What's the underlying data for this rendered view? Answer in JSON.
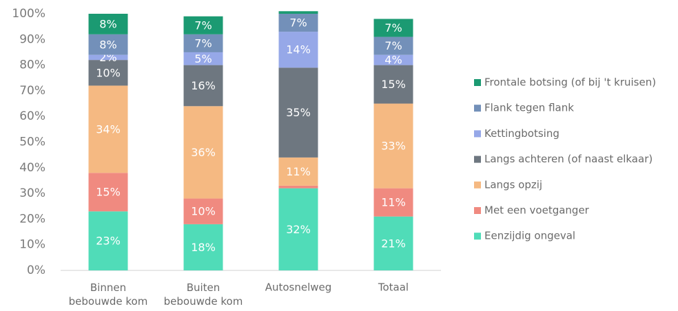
{
  "chart_data": {
    "type": "stacked_bar",
    "categories": [
      "Binnen bebouwde kom",
      "Buiten bebouwde kom",
      "Autosnelweg",
      "Totaal"
    ],
    "ylim": [
      0,
      100
    ],
    "yticks": [
      {
        "value": 0,
        "label": "0%"
      },
      {
        "value": 10,
        "label": "10%"
      },
      {
        "value": 20,
        "label": "20%"
      },
      {
        "value": 30,
        "label": "30%"
      },
      {
        "value": 40,
        "label": "40%"
      },
      {
        "value": 50,
        "label": "50%"
      },
      {
        "value": 60,
        "label": "60%"
      },
      {
        "value": 70,
        "label": "70%"
      },
      {
        "value": 80,
        "label": "80%"
      },
      {
        "value": 90,
        "label": "90%"
      },
      {
        "value": 100,
        "label": "100%"
      }
    ],
    "legend": "right",
    "series": [
      {
        "name": "Eenzijdig ongeval",
        "color": "#50dcb8",
        "values": [
          23,
          18,
          32,
          21
        ],
        "value_labels": [
          "23%",
          "18%",
          "32%",
          "21%"
        ]
      },
      {
        "name": "Met een voetganger",
        "color": "#f08a80",
        "values": [
          15,
          10,
          1,
          11
        ],
        "value_labels": [
          "15%",
          "10%",
          null,
          "11%"
        ]
      },
      {
        "name": "Langs opzij",
        "color": "#f5b982",
        "values": [
          34,
          36,
          11,
          33
        ],
        "value_labels": [
          "34%",
          "36%",
          "11%",
          "33%"
        ]
      },
      {
        "name": "Langs achteren (of naast elkaar)",
        "color": "#6e7780",
        "values": [
          10,
          16,
          35,
          15
        ],
        "value_labels": [
          "10%",
          "16%",
          "35%",
          "15%"
        ]
      },
      {
        "name": "Kettingbotsing",
        "color": "#96a8e8",
        "values": [
          2,
          5,
          14,
          4
        ],
        "value_labels": [
          "2%",
          "5%",
          "14%",
          "4%"
        ]
      },
      {
        "name": "Flank tegen flank",
        "color": "#7390b9",
        "values": [
          8,
          7,
          7,
          7
        ],
        "value_labels": [
          "8%",
          "7%",
          "7%",
          "7%"
        ]
      },
      {
        "name": "Frontale botsing (of bij 't kruisen)",
        "color": "#1b9a72",
        "values": [
          8,
          7,
          1,
          7
        ],
        "value_labels": [
          "8%",
          "7%",
          null,
          "7%"
        ]
      }
    ]
  }
}
